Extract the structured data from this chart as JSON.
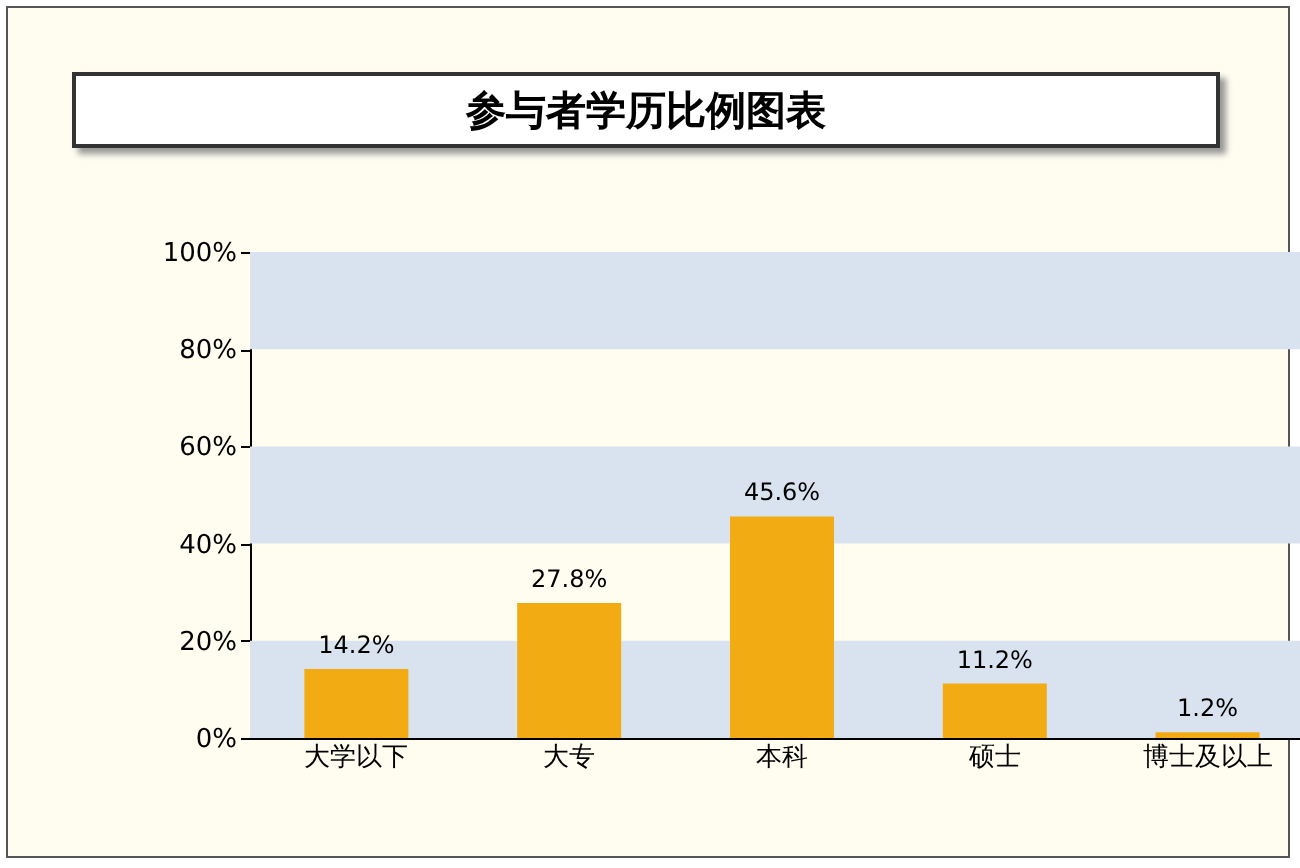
{
  "chart_data": {
    "type": "bar",
    "title": "参与者学历比例图表",
    "categories": [
      "大学以下",
      "大专",
      "本科",
      "硕士",
      "博士及以上"
    ],
    "values": [
      14.2,
      27.8,
      45.6,
      11.2,
      1.2
    ],
    "value_labels": [
      "14.2%",
      "27.8%",
      "45.6%",
      "11.2%",
      "1.2%"
    ],
    "color": "#f2ab13",
    "ylim": [
      0,
      100
    ],
    "yticks": [
      {
        "value": 0,
        "label": "0%"
      },
      {
        "value": 20,
        "label": "20%"
      },
      {
        "value": 40,
        "label": "40%"
      },
      {
        "value": 60,
        "label": "60%"
      },
      {
        "value": 80,
        "label": "80%"
      },
      {
        "value": 100,
        "label": "100%"
      }
    ],
    "bands": [
      {
        "axis": "y",
        "from": 0,
        "to": 20,
        "color": "#d9e3ef"
      },
      {
        "axis": "y",
        "from": 40,
        "to": 60,
        "color": "#d9e3ef"
      },
      {
        "axis": "y",
        "from": 80,
        "to": 100,
        "color": "#d9e3ef"
      }
    ],
    "grid": false
  }
}
